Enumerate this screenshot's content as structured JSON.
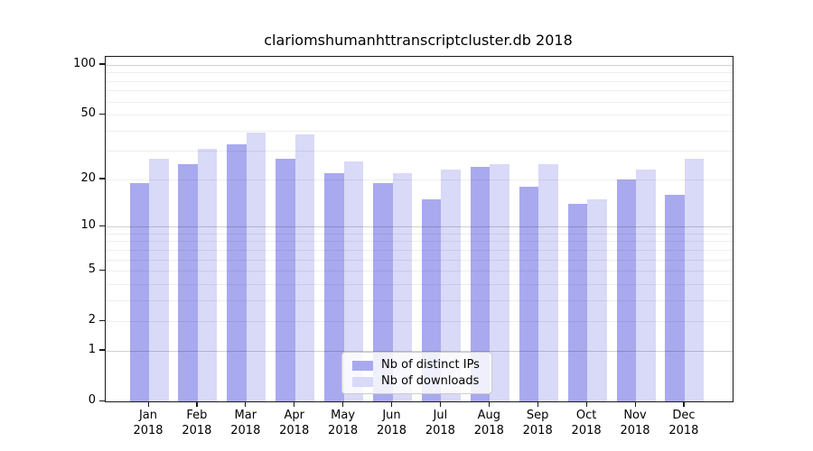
{
  "chart_data": {
    "type": "bar",
    "title": "clariomshumanhttranscriptcluster.db 2018",
    "categories": [
      "Jan 2018",
      "Feb 2018",
      "Mar 2018",
      "Apr 2018",
      "May 2018",
      "Jun 2018",
      "Jul 2018",
      "Aug 2018",
      "Sep 2018",
      "Oct 2018",
      "Nov 2018",
      "Dec 2018"
    ],
    "series": [
      {
        "name": "Nb of distinct IPs",
        "color": "#a9a9ef",
        "values": [
          19,
          25,
          33,
          27,
          22,
          19,
          15,
          24,
          18,
          14,
          20,
          16
        ]
      },
      {
        "name": "Nb of downloads",
        "color": "#d9d9f8",
        "values": [
          27,
          31,
          39,
          38,
          26,
          22,
          23,
          25,
          25,
          15,
          23,
          27
        ]
      }
    ],
    "xlabel": "",
    "ylabel": "",
    "yscale": "log10(1+v)",
    "ylim": [
      0,
      111
    ],
    "ytick_values": [
      100,
      50,
      20,
      10,
      5,
      2,
      1,
      0
    ],
    "ytick_labels": [
      "100",
      "50",
      "20",
      "10",
      "5",
      "2",
      "1",
      "0"
    ],
    "grid": "on",
    "grid_minor_values": [
      2,
      3,
      4,
      5,
      6,
      7,
      8,
      9,
      20,
      30,
      40,
      50,
      60,
      70,
      80,
      90
    ],
    "grid_major_values": [
      1,
      10,
      100
    ],
    "legend_position": "lower-center-inside"
  }
}
